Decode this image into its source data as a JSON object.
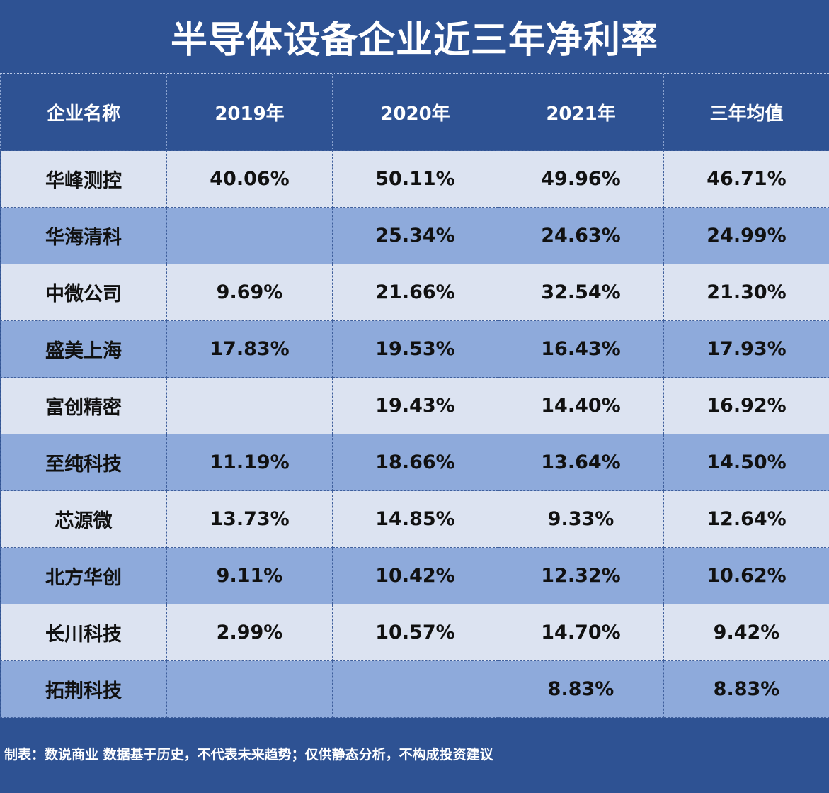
{
  "title": "半导体设备企业近三年净利率",
  "headers": [
    "企业名称",
    "2019年",
    "2020年",
    "2021年",
    "三年均值"
  ],
  "rows": [
    [
      "华峰测控",
      "40.06%",
      "50.11%",
      "49.96%",
      "46.71%"
    ],
    [
      "华海清科",
      "",
      "25.34%",
      "24.63%",
      "24.99%"
    ],
    [
      "中微公司",
      "9.69%",
      "21.66%",
      "32.54%",
      "21.30%"
    ],
    [
      "盛美上海",
      "17.83%",
      "19.53%",
      "16.43%",
      "17.93%"
    ],
    [
      "富创精密",
      "",
      "19.43%",
      "14.40%",
      "16.92%"
    ],
    [
      "至纯科技",
      "11.19%",
      "18.66%",
      "13.64%",
      "14.50%"
    ],
    [
      "芯源微",
      "13.73%",
      "14.85%",
      "9.33%",
      "12.64%"
    ],
    [
      "北方华创",
      "9.11%",
      "10.42%",
      "12.32%",
      "10.62%"
    ],
    [
      "长川科技",
      "2.99%",
      "10.57%",
      "14.70%",
      "9.42%"
    ],
    [
      "拓荆科技",
      "",
      "",
      "8.83%",
      "8.83%"
    ]
  ],
  "footer": "制表：数说商业 数据基于历史，不代表未来趋势；仅供静态分析，不构成投资建议",
  "colors": {
    "background": "#2e5293",
    "row_light": "#dce3f1",
    "row_dark": "#8eaadb",
    "header_text": "#ffffff",
    "cell_text": "#111111"
  }
}
